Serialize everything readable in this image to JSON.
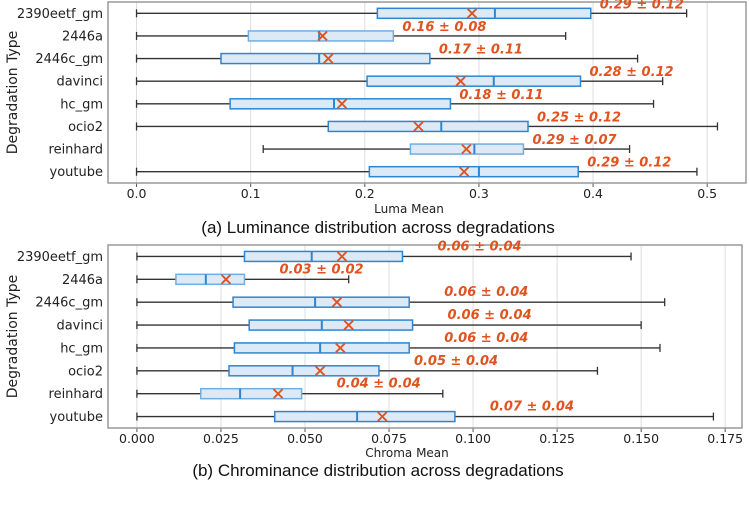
{
  "colors": {
    "box_fill": "#dce9f7",
    "box_edge": "#2e86d0",
    "box_edge_light": "#72addf",
    "mean_marker": "#e0531f",
    "annotation": "#e0531f",
    "whisker": "#333333",
    "grid": "#dddddd"
  },
  "chart_data": [
    {
      "type": "boxplot",
      "orientation": "horizontal",
      "caption": "(a) Luminance distribution across degradations",
      "xlabel": "Luma Mean",
      "ylabel": "Degradation Type",
      "xlim": [
        -0.025,
        0.534
      ],
      "xticks": [
        0.0,
        0.1,
        0.2,
        0.3,
        0.4,
        0.5
      ],
      "xtick_labels": [
        "0.0",
        "0.1",
        "0.2",
        "0.3",
        "0.4",
        "0.5"
      ],
      "grid": "vertical",
      "categories": [
        "2390eetf_gm",
        "2446a",
        "2446c_gm",
        "davinci",
        "hc_gm",
        "ocio2",
        "reinhard",
        "youtube"
      ],
      "boxes": [
        {
          "whisker_low": 0.0,
          "q1": 0.211,
          "median": 0.314,
          "q3": 0.398,
          "whisker_high": 0.482,
          "mean": 0.294,
          "label": "0.29 ± 0.12",
          "light": false
        },
        {
          "whisker_low": 0.0,
          "q1": 0.098,
          "median": 0.16,
          "q3": 0.225,
          "whisker_high": 0.376,
          "mean": 0.163,
          "label": "0.16 ± 0.08",
          "light": true
        },
        {
          "whisker_low": 0.0,
          "q1": 0.074,
          "median": 0.16,
          "q3": 0.257,
          "whisker_high": 0.439,
          "mean": 0.168,
          "label": "0.17 ± 0.11",
          "light": false
        },
        {
          "whisker_low": 0.0,
          "q1": 0.202,
          "median": 0.313,
          "q3": 0.389,
          "whisker_high": 0.461,
          "mean": 0.284,
          "label": "0.28 ± 0.12",
          "light": false
        },
        {
          "whisker_low": 0.0,
          "q1": 0.082,
          "median": 0.173,
          "q3": 0.275,
          "whisker_high": 0.453,
          "mean": 0.18,
          "label": "0.18 ± 0.11",
          "light": false
        },
        {
          "whisker_low": 0.0,
          "q1": 0.168,
          "median": 0.267,
          "q3": 0.343,
          "whisker_high": 0.509,
          "mean": 0.247,
          "label": "0.25 ± 0.12",
          "light": false
        },
        {
          "whisker_low": 0.111,
          "q1": 0.24,
          "median": 0.296,
          "q3": 0.339,
          "whisker_high": 0.432,
          "mean": 0.289,
          "label": "0.29 ± 0.07",
          "light": true
        },
        {
          "whisker_low": 0.0,
          "q1": 0.204,
          "median": 0.3,
          "q3": 0.387,
          "whisker_high": 0.491,
          "mean": 0.287,
          "label": "0.29 ± 0.12",
          "light": false
        }
      ]
    },
    {
      "type": "boxplot",
      "orientation": "horizontal",
      "caption": "(b) Chrominance distribution across degradations",
      "xlabel": "Chroma Mean",
      "ylabel": "Degradation Type",
      "xlim": [
        -0.0086,
        0.18
      ],
      "xticks": [
        0.0,
        0.025,
        0.05,
        0.075,
        0.1,
        0.125,
        0.15,
        0.175
      ],
      "xtick_labels": [
        "0.000",
        "0.025",
        "0.050",
        "0.075",
        "0.100",
        "0.125",
        "0.150",
        "0.175"
      ],
      "grid": "vertical",
      "categories": [
        "2390eetf_gm",
        "2446a",
        "2446c_gm",
        "davinci",
        "hc_gm",
        "ocio2",
        "reinhard",
        "youtube"
      ],
      "boxes": [
        {
          "whisker_low": 0.0,
          "q1": 0.032,
          "median": 0.052,
          "q3": 0.079,
          "whisker_high": 0.147,
          "mean": 0.061,
          "label": "0.06 ± 0.04",
          "light": false
        },
        {
          "whisker_low": 0.0,
          "q1": 0.0116,
          "median": 0.0205,
          "q3": 0.032,
          "whisker_high": 0.063,
          "mean": 0.0265,
          "label": "0.03 ± 0.02",
          "light": true
        },
        {
          "whisker_low": 0.0,
          "q1": 0.0286,
          "median": 0.053,
          "q3": 0.081,
          "whisker_high": 0.157,
          "mean": 0.0595,
          "label": "0.06 ± 0.04",
          "light": false
        },
        {
          "whisker_low": 0.0,
          "q1": 0.0334,
          "median": 0.055,
          "q3": 0.082,
          "whisker_high": 0.15,
          "mean": 0.063,
          "label": "0.06 ± 0.04",
          "light": false
        },
        {
          "whisker_low": 0.0,
          "q1": 0.029,
          "median": 0.0545,
          "q3": 0.081,
          "whisker_high": 0.1556,
          "mean": 0.0605,
          "label": "0.06 ± 0.04",
          "light": false
        },
        {
          "whisker_low": 0.0,
          "q1": 0.0274,
          "median": 0.0463,
          "q3": 0.072,
          "whisker_high": 0.137,
          "mean": 0.0545,
          "label": "0.05 ± 0.04",
          "light": false
        },
        {
          "whisker_low": 0.0,
          "q1": 0.019,
          "median": 0.0307,
          "q3": 0.049,
          "whisker_high": 0.091,
          "mean": 0.042,
          "label": "0.04 ± 0.04",
          "light": true
        },
        {
          "whisker_low": 0.0,
          "q1": 0.041,
          "median": 0.0655,
          "q3": 0.0946,
          "whisker_high": 0.1715,
          "mean": 0.073,
          "label": "0.07 ± 0.04",
          "light": false
        }
      ]
    }
  ]
}
